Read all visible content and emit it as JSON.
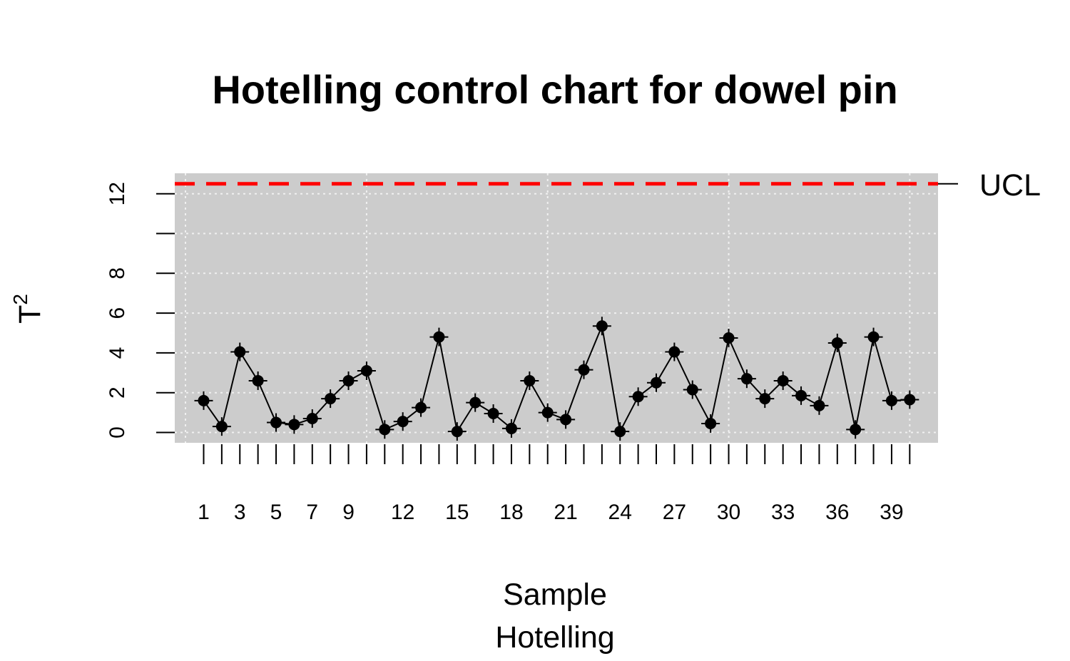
{
  "chart_data": {
    "type": "line",
    "title": "Hotelling control chart for dowel pin",
    "xlabel": "Sample",
    "xsublabel": "Hotelling",
    "ylabel_base": "T",
    "ylabel_sup": "2",
    "x": [
      1,
      2,
      3,
      4,
      5,
      6,
      7,
      8,
      9,
      10,
      11,
      12,
      13,
      14,
      15,
      16,
      17,
      18,
      19,
      20,
      21,
      22,
      23,
      24,
      25,
      26,
      27,
      28,
      29,
      30,
      31,
      32,
      33,
      34,
      35,
      36,
      37,
      38,
      39,
      40
    ],
    "values": [
      1.6,
      0.3,
      4.05,
      2.6,
      0.5,
      0.4,
      0.7,
      1.7,
      2.6,
      3.1,
      0.15,
      0.55,
      1.25,
      4.8,
      0.05,
      1.5,
      0.95,
      0.2,
      2.6,
      1.0,
      0.65,
      3.15,
      5.35,
      0.05,
      1.8,
      2.5,
      4.05,
      2.15,
      0.45,
      4.75,
      2.7,
      1.7,
      2.6,
      1.85,
      1.35,
      4.5,
      0.15,
      4.8,
      1.6,
      1.65
    ],
    "x_tick_labels": [
      "1",
      "3",
      "5",
      "7",
      "9",
      "12",
      "15",
      "18",
      "21",
      "24",
      "27",
      "30",
      "33",
      "36",
      "39"
    ],
    "y_ticks": [
      0,
      2,
      4,
      6,
      8,
      10,
      12
    ],
    "y_tick_labels": [
      "0",
      "2",
      "4",
      "6",
      "8",
      "",
      "12"
    ],
    "ylim": [
      -0.5,
      13.1
    ],
    "ucl": 12.5,
    "ucl_label": "UCL",
    "grid": true,
    "colors": {
      "panel_background": "#cccccc",
      "grid": "#f0f0f0",
      "ucl_line": "#ff0000",
      "series": "#000000"
    }
  }
}
